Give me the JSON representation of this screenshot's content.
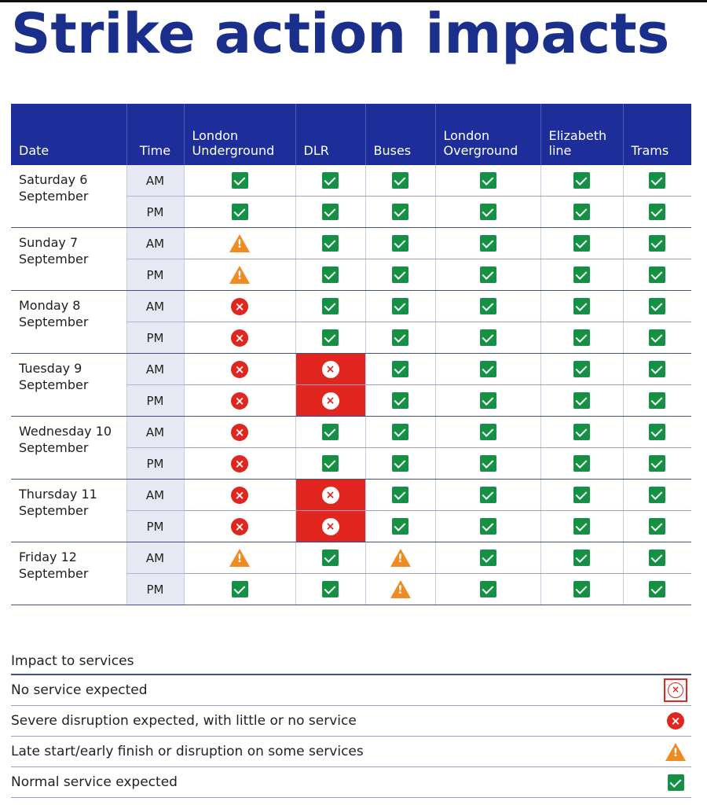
{
  "title": "Strike action impacts",
  "headers": {
    "date": "Date",
    "time": "Time",
    "services": [
      "London Underground",
      "DLR",
      "Buses",
      "London Overground",
      "Elizabeth line",
      "Trams"
    ]
  },
  "status_icons": {
    "none": {
      "icon": "no-service-icon",
      "color": "#e0261f"
    },
    "severe": {
      "icon": "severe-disruption-icon",
      "color": "#e0261f"
    },
    "partial": {
      "icon": "warning-icon",
      "color": "#f08a22"
    },
    "normal": {
      "icon": "check-icon",
      "color": "#149145"
    }
  },
  "days": [
    {
      "date": "Saturday 6 September",
      "am": [
        "normal",
        "normal",
        "normal",
        "normal",
        "normal",
        "normal"
      ],
      "pm": [
        "normal",
        "normal",
        "normal",
        "normal",
        "normal",
        "normal"
      ]
    },
    {
      "date": "Sunday 7 September",
      "am": [
        "partial",
        "normal",
        "normal",
        "normal",
        "normal",
        "normal"
      ],
      "pm": [
        "partial",
        "normal",
        "normal",
        "normal",
        "normal",
        "normal"
      ]
    },
    {
      "date": "Monday 8 September",
      "am": [
        "severe",
        "normal",
        "normal",
        "normal",
        "normal",
        "normal"
      ],
      "pm": [
        "severe",
        "normal",
        "normal",
        "normal",
        "normal",
        "normal"
      ]
    },
    {
      "date": "Tuesday 9 September",
      "am": [
        "severe",
        "none",
        "normal",
        "normal",
        "normal",
        "normal"
      ],
      "pm": [
        "severe",
        "none",
        "normal",
        "normal",
        "normal",
        "normal"
      ]
    },
    {
      "date": "Wednesday 10 September",
      "am": [
        "severe",
        "normal",
        "normal",
        "normal",
        "normal",
        "normal"
      ],
      "pm": [
        "severe",
        "normal",
        "normal",
        "normal",
        "normal",
        "normal"
      ]
    },
    {
      "date": "Thursday 11 September",
      "am": [
        "severe",
        "none",
        "normal",
        "normal",
        "normal",
        "normal"
      ],
      "pm": [
        "severe",
        "none",
        "normal",
        "normal",
        "normal",
        "normal"
      ]
    },
    {
      "date": "Friday 12 September",
      "am": [
        "partial",
        "normal",
        "partial",
        "normal",
        "normal",
        "normal"
      ],
      "pm": [
        "normal",
        "normal",
        "partial",
        "normal",
        "normal",
        "normal"
      ]
    }
  ],
  "time_labels": {
    "am": "AM",
    "pm": "PM"
  },
  "legend": {
    "title": "Impact to services",
    "items": [
      {
        "label": "No service expected",
        "status": "none"
      },
      {
        "label": "Severe disruption expected, with little or no service",
        "status": "severe"
      },
      {
        "label": "Late start/early finish or disruption on some services",
        "status": "partial"
      },
      {
        "label": "Normal service expected",
        "status": "normal"
      }
    ]
  }
}
